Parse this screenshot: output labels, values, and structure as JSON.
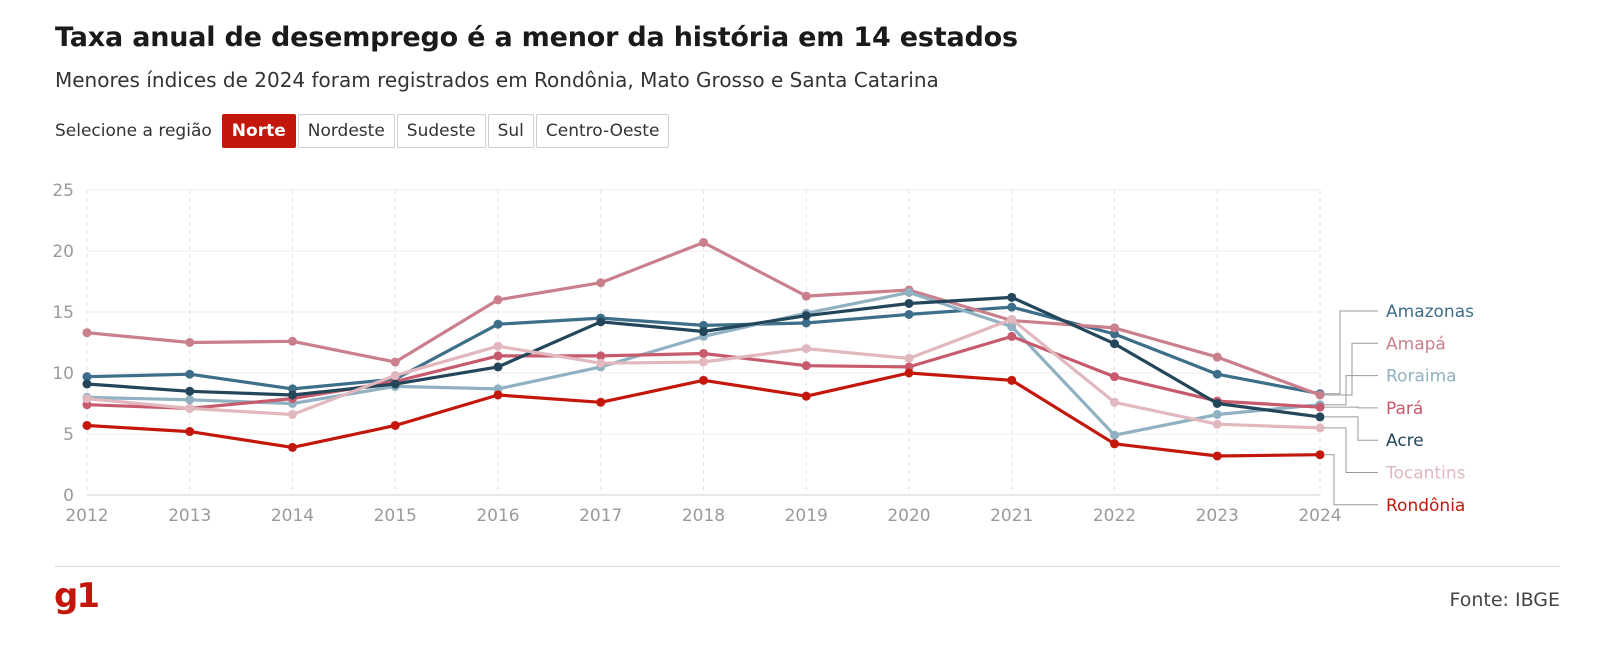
{
  "header": {
    "title": "Taxa anual de desemprego é a menor da história em 14 estados",
    "subtitle": "Menores índices de 2024 foram registrados em Rondônia, Mato Grosso e Santa Catarina"
  },
  "region_selector": {
    "label": "Selecione a região",
    "options": [
      "Norte",
      "Nordeste",
      "Sudeste",
      "Sul",
      "Centro-Oeste"
    ],
    "selected": "Norte"
  },
  "footer": {
    "logo": "g1",
    "source": "Fonte: IBGE"
  },
  "colors": {
    "accent": "#c4170c"
  },
  "chart_data": {
    "type": "line",
    "x": [
      "2012",
      "2013",
      "2014",
      "2015",
      "2016",
      "2017",
      "2018",
      "2019",
      "2020",
      "2021",
      "2022",
      "2023",
      "2024"
    ],
    "yticks": [
      0,
      5,
      10,
      15,
      20,
      25
    ],
    "ylim": [
      0,
      25
    ],
    "grid": true,
    "legend": "right, labels at line ends",
    "series": [
      {
        "name": "Amazonas",
        "color": "#3d6f8a",
        "values": [
          9.7,
          9.9,
          8.7,
          9.5,
          14.0,
          14.5,
          13.9,
          14.1,
          14.8,
          15.4,
          13.2,
          9.9,
          8.3
        ]
      },
      {
        "name": "Amapá",
        "color": "#c97f8c",
        "values": [
          13.3,
          12.5,
          12.6,
          10.9,
          16.0,
          17.4,
          20.7,
          16.3,
          16.8,
          14.3,
          13.7,
          11.3,
          8.2
        ]
      },
      {
        "name": "Roraima",
        "color": "#8fb1c1",
        "values": [
          8.0,
          7.8,
          7.5,
          8.9,
          8.7,
          10.5,
          13.0,
          14.9,
          16.6,
          13.8,
          4.9,
          6.6,
          7.4
        ]
      },
      {
        "name": "Pará",
        "color": "#c75a6d",
        "values": [
          7.4,
          7.1,
          7.9,
          9.3,
          11.4,
          11.4,
          11.6,
          10.6,
          10.5,
          13.0,
          9.7,
          7.7,
          7.2
        ]
      },
      {
        "name": "Acre",
        "color": "#24465a",
        "values": [
          9.1,
          8.5,
          8.2,
          9.1,
          10.5,
          14.2,
          13.4,
          14.7,
          15.7,
          16.2,
          12.4,
          7.5,
          6.4
        ]
      },
      {
        "name": "Tocantins",
        "color": "#e2b8bf",
        "values": [
          7.9,
          7.1,
          6.6,
          9.8,
          12.2,
          10.8,
          10.9,
          12.0,
          11.2,
          14.4,
          7.6,
          5.8,
          5.5
        ]
      },
      {
        "name": "Rondônia",
        "color": "#c4170c",
        "values": [
          5.7,
          5.2,
          3.9,
          5.7,
          8.2,
          7.6,
          9.4,
          8.1,
          10.0,
          9.4,
          4.2,
          3.2,
          3.3
        ]
      }
    ]
  }
}
